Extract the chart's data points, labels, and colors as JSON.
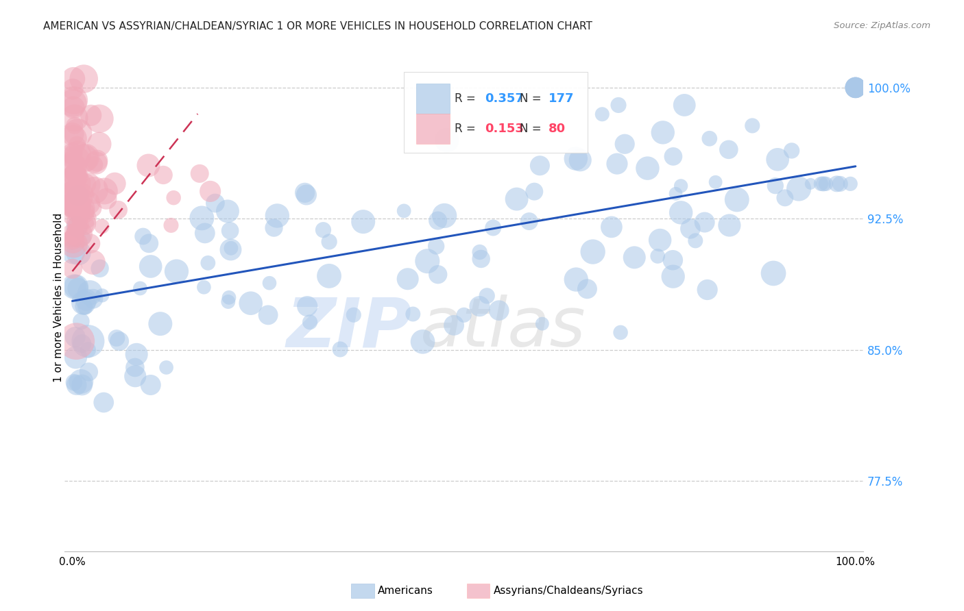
{
  "title": "AMERICAN VS ASSYRIAN/CHALDEAN/SYRIAC 1 OR MORE VEHICLES IN HOUSEHOLD CORRELATION CHART",
  "source": "Source: ZipAtlas.com",
  "ylabel": "1 or more Vehicles in Household",
  "ytick_labels": [
    "100.0%",
    "92.5%",
    "85.0%",
    "77.5%"
  ],
  "ytick_values": [
    1.0,
    0.925,
    0.85,
    0.775
  ],
  "xlim": [
    -0.01,
    1.01
  ],
  "ylim": [
    0.735,
    1.025
  ],
  "legend_blue_r": "0.357",
  "legend_blue_n": "177",
  "legend_pink_r": "0.153",
  "legend_pink_n": "80",
  "legend_blue_label": "Americans",
  "legend_pink_label": "Assyrians/Chaldeans/Syriacs",
  "blue_color": "#aac8e8",
  "pink_color": "#f0a8b8",
  "blue_line_color": "#2255bb",
  "pink_line_color": "#cc3355",
  "blue_trend": [
    0.0,
    1.0,
    0.878,
    0.955
  ],
  "pink_trend": [
    0.0,
    0.16,
    0.895,
    0.985
  ],
  "watermark_zip": "ZIP",
  "watermark_atlas": "atlas",
  "grid_color": "#cccccc",
  "grid_style": "--"
}
